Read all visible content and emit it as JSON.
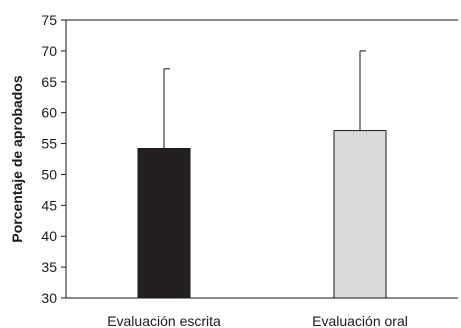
{
  "chart_data": {
    "type": "bar",
    "ylabel": "Porcentaje de aprobados",
    "ylim": [
      30,
      75
    ],
    "yticks": [
      30,
      35,
      40,
      45,
      50,
      55,
      60,
      65,
      70,
      75
    ],
    "categories": [
      "Evaluación escrita",
      "Evaluación oral"
    ],
    "values": [
      54.2,
      57.1
    ],
    "error_upper": [
      67.1,
      70.0
    ],
    "colors": [
      "#231f20",
      "#d9dadc"
    ],
    "grid": false,
    "top_border": true
  }
}
